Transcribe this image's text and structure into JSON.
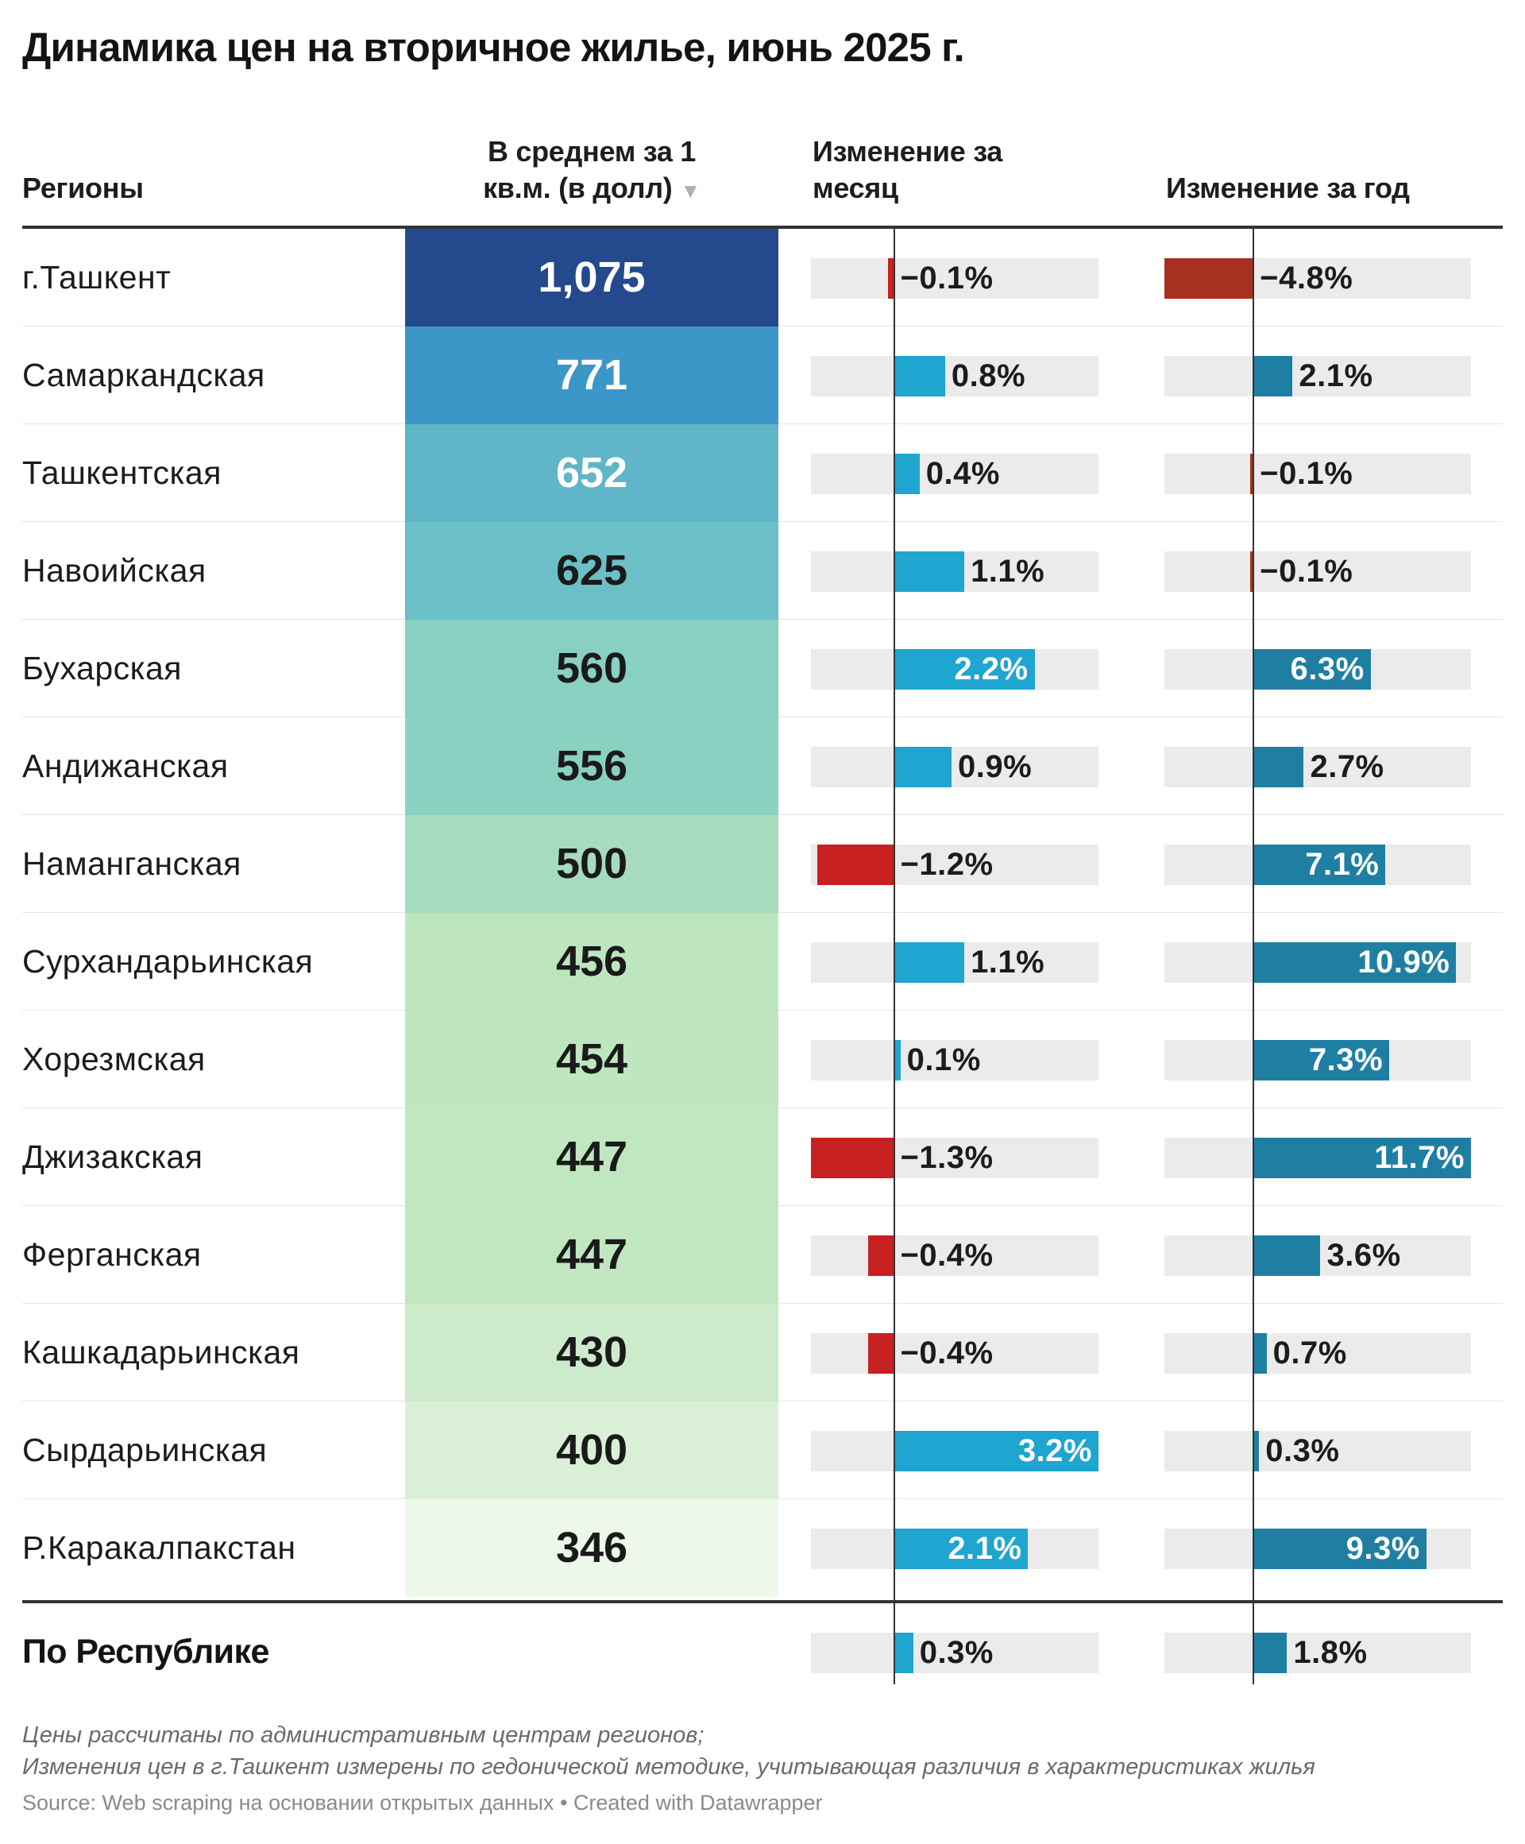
{
  "title": "Динамика цен на вторичное жилье, июнь 2025 г.",
  "headers": {
    "region": "Регионы",
    "price_line1": "В среднем за 1",
    "price_line2": "кв.м. (в долл)",
    "sort_icon": "▼",
    "month_line1": "Изменение за",
    "month_line2": "месяц",
    "year": "Изменение за год"
  },
  "colors": {
    "positive_month": "#1ea5d0",
    "positive_year": "#1f7fa3",
    "negative_month": "#c62020",
    "negative_year": "#a8301f",
    "track": "#ebebeb"
  },
  "chart_data": {
    "type": "table",
    "columns": [
      "Регионы",
      "В среднем за 1 кв.м. (в долл)",
      "Изменение за месяц",
      "Изменение за год"
    ],
    "month_range": [
      -1.3,
      3.2
    ],
    "year_range": [
      -4.8,
      11.7
    ],
    "rows": [
      {
        "region": "г.Ташкент",
        "price": 1075,
        "price_label": "1,075",
        "month": -0.1,
        "month_label": "−0.1%",
        "year": -4.8,
        "year_label": "−4.8%",
        "heat_color": "#24498c",
        "heat_text": "#ffffff"
      },
      {
        "region": "Самаркандская",
        "price": 771,
        "price_label": "771",
        "month": 0.8,
        "month_label": "0.8%",
        "year": 2.1,
        "year_label": "2.1%",
        "heat_color": "#3c97c8",
        "heat_text": "#ffffff"
      },
      {
        "region": "Ташкентская",
        "price": 652,
        "price_label": "652",
        "month": 0.4,
        "month_label": "0.4%",
        "year": -0.1,
        "year_label": "−0.1%",
        "heat_color": "#60b5c8",
        "heat_text": "#ffffff"
      },
      {
        "region": "Навоийская",
        "price": 625,
        "price_label": "625",
        "month": 1.1,
        "month_label": "1.1%",
        "year": -0.1,
        "year_label": "−0.1%",
        "heat_color": "#6bbfc6",
        "heat_text": "#1a1a1a"
      },
      {
        "region": "Бухарская",
        "price": 560,
        "price_label": "560",
        "month": 2.2,
        "month_label": "2.2%",
        "year": 6.3,
        "year_label": "6.3%",
        "heat_color": "#88d0c2",
        "heat_text": "#1a1a1a"
      },
      {
        "region": "Андижанская",
        "price": 556,
        "price_label": "556",
        "month": 0.9,
        "month_label": "0.9%",
        "year": 2.7,
        "year_label": "2.7%",
        "heat_color": "#8bd1c2",
        "heat_text": "#1a1a1a"
      },
      {
        "region": "Наманганская",
        "price": 500,
        "price_label": "500",
        "month": -1.2,
        "month_label": "−1.2%",
        "year": 7.1,
        "year_label": "7.1%",
        "heat_color": "#a6dcbd",
        "heat_text": "#1a1a1a"
      },
      {
        "region": "Сурхандарьинская",
        "price": 456,
        "price_label": "456",
        "month": 1.1,
        "month_label": "1.1%",
        "year": 10.9,
        "year_label": "10.9%",
        "heat_color": "#bde6be",
        "heat_text": "#1a1a1a"
      },
      {
        "region": "Хорезмская",
        "price": 454,
        "price_label": "454",
        "month": 0.1,
        "month_label": "0.1%",
        "year": 7.3,
        "year_label": "7.3%",
        "heat_color": "#bee6bf",
        "heat_text": "#1a1a1a"
      },
      {
        "region": "Джизакская",
        "price": 447,
        "price_label": "447",
        "month": -1.3,
        "month_label": "−1.3%",
        "year": 11.7,
        "year_label": "11.7%",
        "heat_color": "#c1e7c1",
        "heat_text": "#1a1a1a"
      },
      {
        "region": "Ферганская",
        "price": 447,
        "price_label": "447",
        "month": -0.4,
        "month_label": "−0.4%",
        "year": 3.6,
        "year_label": "3.6%",
        "heat_color": "#c1e7c1",
        "heat_text": "#1a1a1a"
      },
      {
        "region": "Кашкадарьинская",
        "price": 430,
        "price_label": "430",
        "month": -0.4,
        "month_label": "−0.4%",
        "year": 0.7,
        "year_label": "0.7%",
        "heat_color": "#cdebcb",
        "heat_text": "#1a1a1a"
      },
      {
        "region": "Сырдарьинская",
        "price": 400,
        "price_label": "400",
        "month": 3.2,
        "month_label": "3.2%",
        "year": 0.3,
        "year_label": "0.3%",
        "heat_color": "#d9f0d6",
        "heat_text": "#1a1a1a"
      },
      {
        "region": "Р.Каракалпакстан",
        "price": 346,
        "price_label": "346",
        "month": 2.1,
        "month_label": "2.1%",
        "year": 9.3,
        "year_label": "9.3%",
        "heat_color": "#edf7ea",
        "heat_text": "#1a1a1a"
      }
    ],
    "total": {
      "region": "По Республике",
      "month": 0.3,
      "month_label": "0.3%",
      "year": 1.8,
      "year_label": "1.8%"
    }
  },
  "notes": {
    "line1": "Цены рассчитаны по административным центрам регионов;",
    "line2": "Изменения цен в г.Ташкент измерены по гедонической методике, учитывающая различия в характеристиках жилья",
    "source": "Source: Web scraping на основании открытых данных • Created with Datawrapper"
  }
}
